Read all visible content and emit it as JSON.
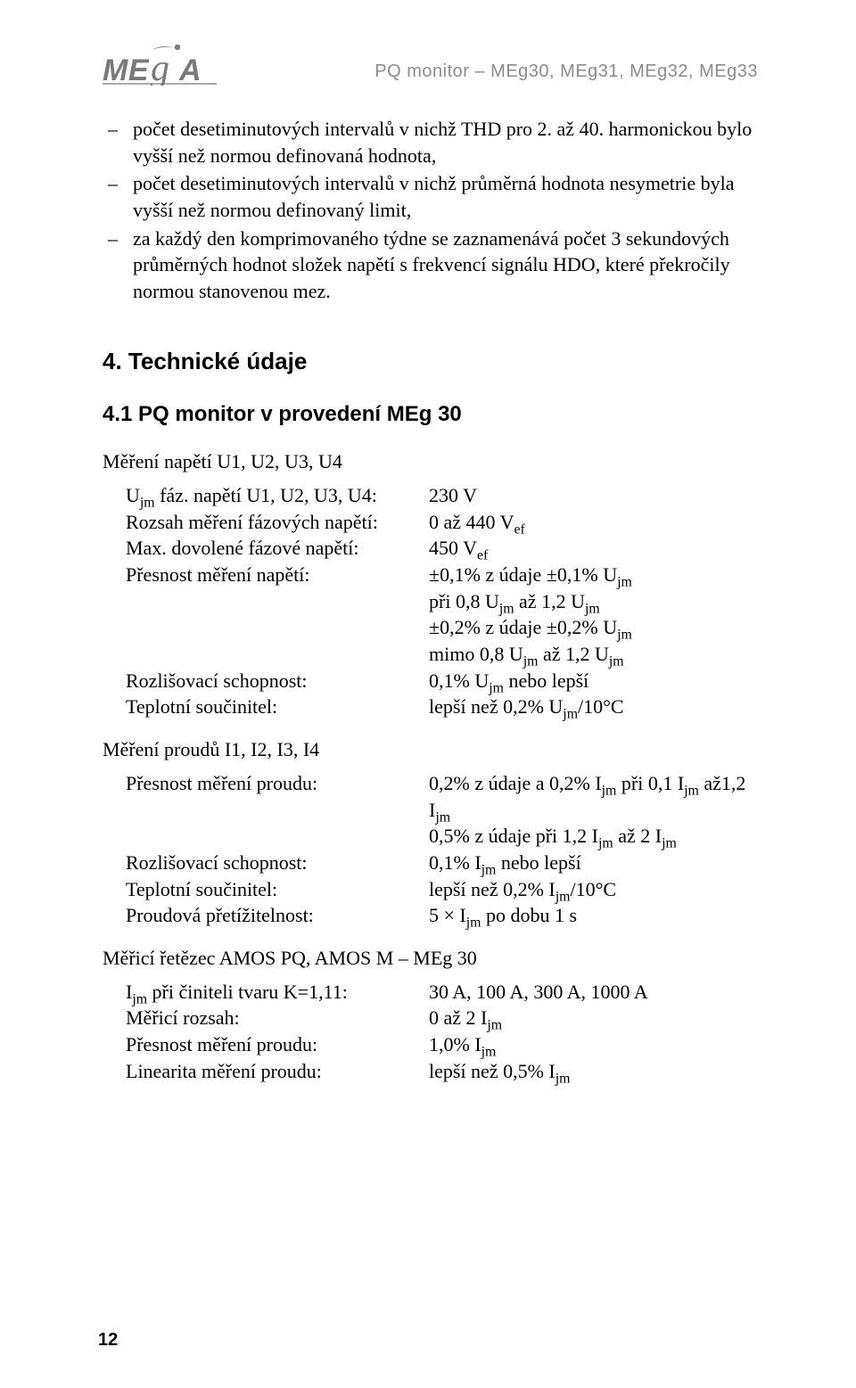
{
  "header": {
    "logo_text": "ME A",
    "doc_title": "PQ monitor – MEg30, MEg31, MEg32, MEg33"
  },
  "bullets": [
    "počet desetiminutových intervalů v nichž THD pro 2. až 40. harmonickou bylo vyšší než normou definovaná hodnota,",
    "počet desetiminutových intervalů v nichž průměrná hodnota nesymetrie byla vyšší než normou definovaný limit,",
    "za každý den komprimovaného týdne se zaznamenává počet 3 sekundových průměrných hodnot složek napětí s frekvencí signálu HDO, které překročily normou stanovenou mez."
  ],
  "section4": {
    "title": "4. Technické údaje",
    "sub1": {
      "title": "4.1 PQ monitor v provedení MEg 30",
      "group_voltage_title": "Měření napětí U1, U2, U3, U4",
      "voltage": [
        {
          "k": "U<sub class=\"sub\">jm</sub> fáz. napětí U1, U2, U3, U4:",
          "v": "230 V"
        },
        {
          "k": "Rozsah měření fázových napětí:",
          "v": "0 až 440 V<sub class=\"sub\">ef</sub>"
        },
        {
          "k": "Max. dovolené fázové napětí:",
          "v": "450 V<sub class=\"sub\">ef</sub>"
        },
        {
          "k": "Přesnost měření napětí:",
          "v": "±0,1% z údaje ±0,1% U<sub class=\"sub\">jm</sub><br>při 0,8 U<sub class=\"sub\">jm</sub> až 1,2 U<sub class=\"sub\">jm</sub><br>±0,2% z údaje ±0,2%  U<sub class=\"sub\">jm</sub><br>mimo 0,8 U<sub class=\"sub\">jm</sub> až 1,2 U<sub class=\"sub\">jm</sub>"
        },
        {
          "k": "Rozlišovací schopnost:",
          "v": "0,1% U<sub class=\"sub\">jm</sub> nebo lepší"
        },
        {
          "k": "Teplotní součinitel:",
          "v": "lepší než 0,2% U<sub class=\"sub\">jm</sub>/10°C"
        }
      ],
      "group_current_title": "Měření proudů I1, I2, I3, I4",
      "current": [
        {
          "k": "Přesnost měření proudu:",
          "v": "0,2% z údaje a 0,2% I<sub class=\"sub\">jm</sub>  při 0,1 I<sub class=\"sub\">jm</sub> až1,2 I<sub class=\"sub\">jm</sub><br>0,5% z údaje při 1,2 I<sub class=\"sub\">jm</sub> až 2 I<sub class=\"sub\">jm</sub>"
        },
        {
          "k": "Rozlišovací schopnost:",
          "v": "0,1% I<sub class=\"sub\">jm</sub> nebo lepší"
        },
        {
          "k": "Teplotní součinitel:",
          "v": "lepší než 0,2% I<sub class=\"sub\">jm</sub>/10°C"
        },
        {
          "k": "Proudová přetížitelnost:",
          "v": "5 × I<sub class=\"sub\">jm</sub> po dobu 1 s"
        }
      ],
      "group_chain_title": "Měřicí řetězec AMOS PQ, AMOS M – MEg 30",
      "chain": [
        {
          "k": "I<sub class=\"sub\">jm</sub> při činiteli tvaru K=1,11:",
          "v": "30 A, 100 A, 300 A, 1000 A"
        },
        {
          "k": "Měřicí rozsah:",
          "v": "0 až 2 I<sub class=\"sub\">jm</sub>"
        },
        {
          "k": "Přesnost měření proudu:",
          "v": "1,0% I<sub class=\"sub\">jm</sub>"
        },
        {
          "k": "Linearita měření proudu:",
          "v": "lepší než 0,5% I<sub class=\"sub\">jm</sub>"
        }
      ]
    }
  },
  "page_number": "12"
}
